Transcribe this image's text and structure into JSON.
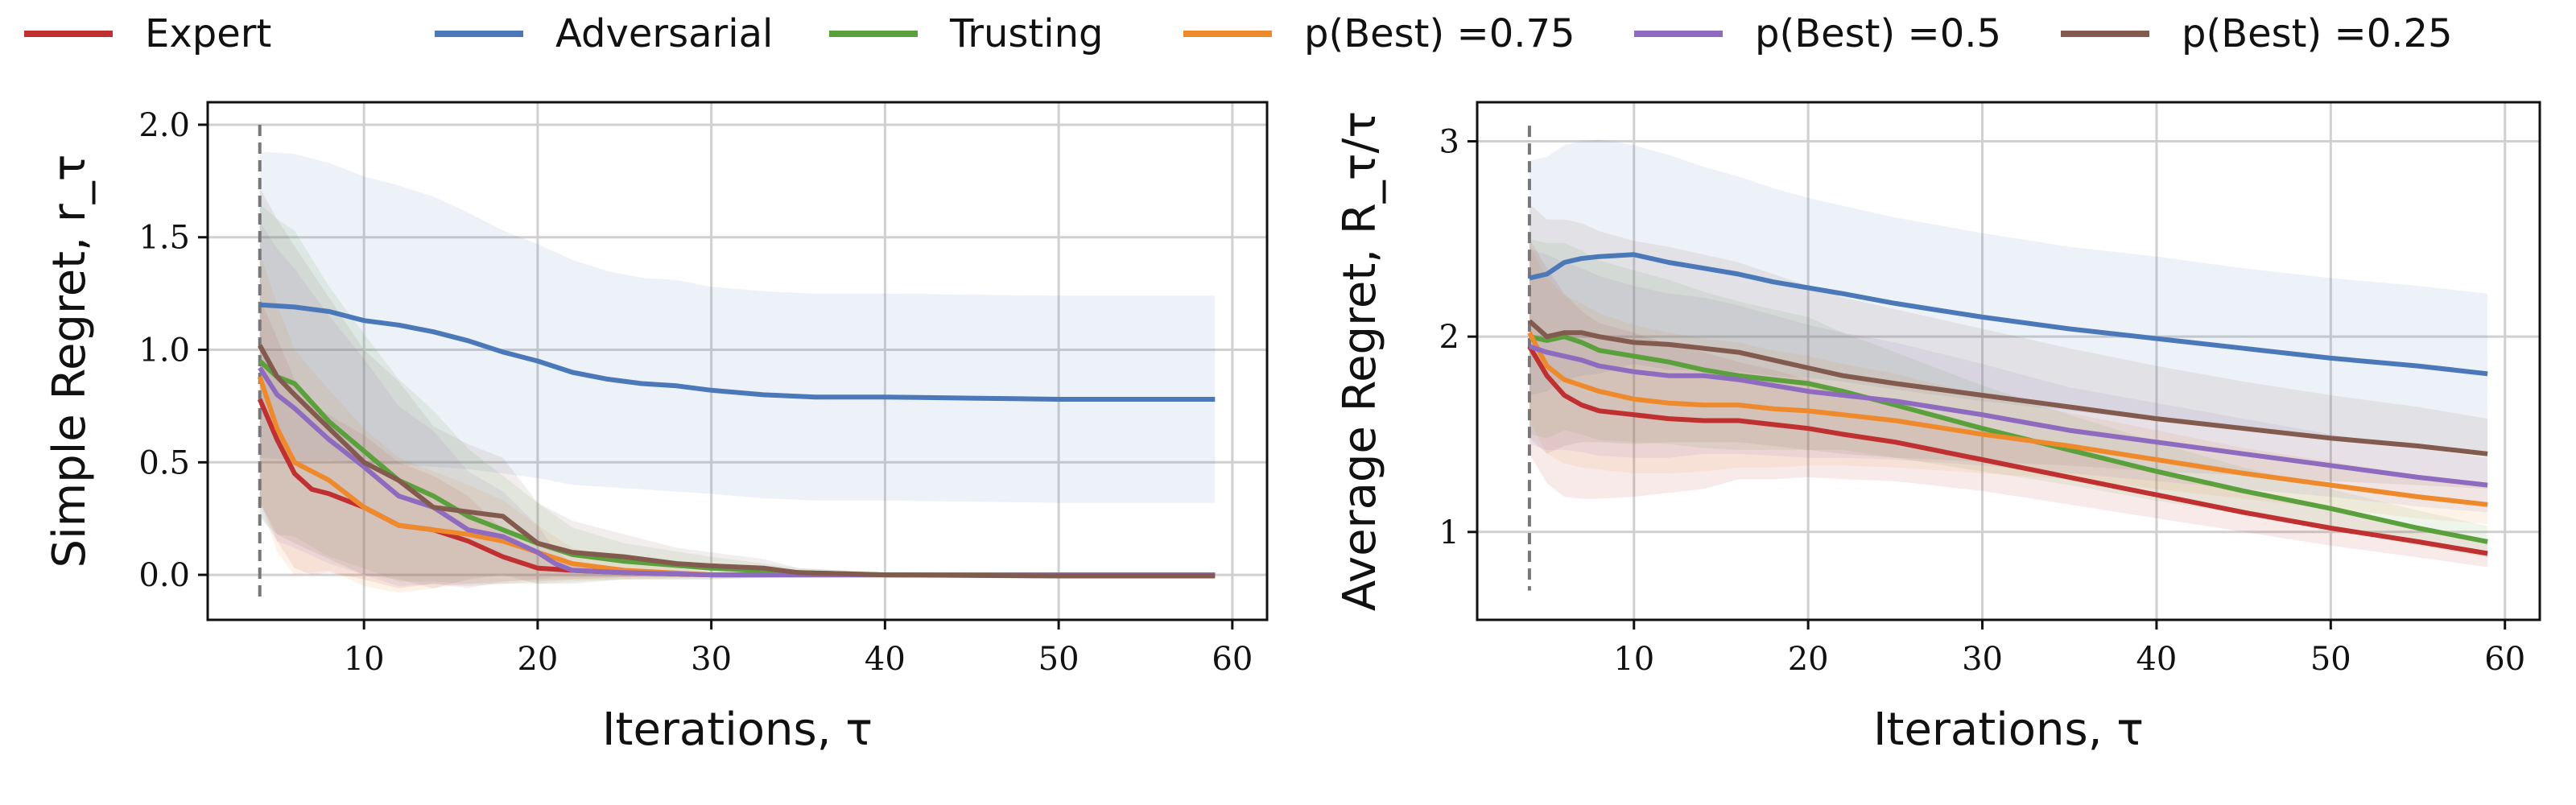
{
  "legend": [
    {
      "label": "Expert",
      "color": "#c03030"
    },
    {
      "label": "Adversarial",
      "color": "#4a78b8"
    },
    {
      "label": "Trusting",
      "color": "#5aa03c"
    },
    {
      "label": "p(Best) =0.75",
      "color": "#ef8a2c"
    },
    {
      "label": "p(Best) =0.5",
      "color": "#8e6bbf"
    },
    {
      "label": "p(Best) =0.25",
      "color": "#835a4e"
    }
  ],
  "chart_data": [
    {
      "type": "line",
      "ylabel": "Simple Regret, r_τ",
      "xlabel": "Iterations, τ",
      "xlim": [
        1,
        62
      ],
      "ylim": [
        -0.2,
        2.1
      ],
      "xticks": [
        10,
        20,
        30,
        40,
        50,
        60
      ],
      "yticks": [
        0.0,
        0.5,
        1.0,
        1.5,
        2.0
      ],
      "ytick_labels": [
        "0.0",
        "0.5",
        "1.0",
        "1.5",
        "2.0"
      ],
      "grid": true,
      "vline_x": 4,
      "series": [
        {
          "name": "Expert",
          "color": "#c03030",
          "x": [
            4,
            5,
            6,
            7,
            8,
            10,
            12,
            14,
            16,
            18,
            20,
            22,
            25,
            30,
            40,
            59
          ],
          "y": [
            0.78,
            0.6,
            0.45,
            0.38,
            0.36,
            0.3,
            0.22,
            0.2,
            0.15,
            0.08,
            0.03,
            0.02,
            0.01,
            0.0,
            0.0,
            0.0
          ],
          "band": [
            0.45,
            0.45,
            0.42,
            0.38,
            0.35,
            0.32,
            0.28,
            0.24,
            0.2,
            0.12,
            0.06,
            0.04,
            0.02,
            0.01,
            0.01,
            0.01
          ]
        },
        {
          "name": "Adversarial",
          "color": "#4a78b8",
          "x": [
            4,
            6,
            8,
            10,
            12,
            14,
            16,
            18,
            20,
            22,
            24,
            26,
            28,
            30,
            33,
            36,
            40,
            45,
            50,
            55,
            59
          ],
          "y": [
            1.2,
            1.19,
            1.17,
            1.13,
            1.11,
            1.08,
            1.04,
            0.99,
            0.95,
            0.9,
            0.87,
            0.85,
            0.84,
            0.82,
            0.8,
            0.79,
            0.79,
            0.785,
            0.78,
            0.78,
            0.78
          ],
          "band": [
            0.68,
            0.68,
            0.66,
            0.64,
            0.62,
            0.6,
            0.57,
            0.54,
            0.52,
            0.5,
            0.48,
            0.47,
            0.47,
            0.46,
            0.46,
            0.46,
            0.46,
            0.46,
            0.46,
            0.46,
            0.46
          ]
        },
        {
          "name": "Trusting",
          "color": "#5aa03c",
          "x": [
            4,
            5,
            6,
            8,
            10,
            12,
            14,
            16,
            18,
            20,
            22,
            25,
            30,
            35,
            40,
            59
          ],
          "y": [
            0.95,
            0.88,
            0.85,
            0.68,
            0.55,
            0.42,
            0.35,
            0.26,
            0.2,
            0.14,
            0.09,
            0.06,
            0.03,
            0.01,
            0.0,
            0.0
          ],
          "band": [
            0.7,
            0.7,
            0.68,
            0.6,
            0.52,
            0.45,
            0.38,
            0.3,
            0.24,
            0.18,
            0.12,
            0.08,
            0.05,
            0.02,
            0.01,
            0.01
          ]
        },
        {
          "name": "p(Best) =0.75",
          "color": "#ef8a2c",
          "x": [
            4,
            5,
            6,
            7,
            8,
            10,
            12,
            14,
            16,
            18,
            20,
            22,
            25,
            30,
            40,
            59
          ],
          "y": [
            0.88,
            0.65,
            0.5,
            0.46,
            0.42,
            0.3,
            0.22,
            0.2,
            0.18,
            0.15,
            0.1,
            0.05,
            0.02,
            0.0,
            0.0,
            0.0
          ],
          "band": [
            0.55,
            0.55,
            0.5,
            0.45,
            0.4,
            0.35,
            0.3,
            0.26,
            0.22,
            0.18,
            0.12,
            0.07,
            0.04,
            0.01,
            0.01,
            0.01
          ]
        },
        {
          "name": "p(Best) =0.5",
          "color": "#8e6bbf",
          "x": [
            4,
            5,
            6,
            8,
            10,
            12,
            14,
            16,
            18,
            20,
            21,
            22,
            25,
            30,
            40,
            59
          ],
          "y": [
            0.92,
            0.8,
            0.74,
            0.6,
            0.48,
            0.35,
            0.3,
            0.2,
            0.17,
            0.1,
            0.05,
            0.02,
            0.01,
            0.0,
            0.0,
            0.0
          ],
          "band": [
            0.65,
            0.65,
            0.62,
            0.55,
            0.48,
            0.4,
            0.34,
            0.26,
            0.2,
            0.12,
            0.06,
            0.03,
            0.02,
            0.01,
            0.01,
            0.01
          ]
        },
        {
          "name": "p(Best) =0.25",
          "color": "#835a4e",
          "x": [
            4,
            5,
            6,
            8,
            10,
            12,
            14,
            16,
            18,
            20,
            22,
            25,
            28,
            30,
            33,
            35,
            40,
            50,
            59
          ],
          "y": [
            1.02,
            0.88,
            0.8,
            0.65,
            0.5,
            0.42,
            0.3,
            0.28,
            0.26,
            0.14,
            0.1,
            0.08,
            0.05,
            0.04,
            0.03,
            0.01,
            0.0,
            -0.005,
            -0.005
          ],
          "band": [
            0.7,
            0.7,
            0.66,
            0.58,
            0.5,
            0.44,
            0.36,
            0.3,
            0.26,
            0.18,
            0.14,
            0.1,
            0.07,
            0.06,
            0.04,
            0.02,
            0.01,
            0.01,
            0.01
          ]
        }
      ]
    },
    {
      "type": "line",
      "ylabel": "Average Regret, R_τ/τ",
      "xlabel": "Iterations, τ",
      "xlim": [
        1,
        62
      ],
      "ylim": [
        0.55,
        3.2
      ],
      "xticks": [
        10,
        20,
        30,
        40,
        50,
        60
      ],
      "yticks": [
        1,
        2,
        3
      ],
      "ytick_labels": [
        "1",
        "2",
        "3"
      ],
      "grid": true,
      "vline_x": 4,
      "series": [
        {
          "name": "Expert",
          "color": "#c03030",
          "x": [
            4,
            5,
            6,
            7,
            8,
            10,
            12,
            14,
            16,
            18,
            20,
            22,
            25,
            30,
            35,
            40,
            45,
            50,
            55,
            59
          ],
          "y": [
            1.95,
            1.8,
            1.7,
            1.65,
            1.62,
            1.6,
            1.58,
            1.57,
            1.57,
            1.55,
            1.53,
            1.5,
            1.46,
            1.37,
            1.28,
            1.19,
            1.1,
            1.02,
            0.95,
            0.89
          ],
          "band": [
            0.55,
            0.55,
            0.52,
            0.48,
            0.45,
            0.42,
            0.38,
            0.35,
            0.3,
            0.28,
            0.25,
            0.23,
            0.2,
            0.16,
            0.14,
            0.12,
            0.1,
            0.09,
            0.08,
            0.07
          ]
        },
        {
          "name": "Adversarial",
          "color": "#4a78b8",
          "x": [
            4,
            5,
            6,
            7,
            8,
            10,
            12,
            14,
            16,
            18,
            20,
            22,
            25,
            30,
            35,
            40,
            45,
            50,
            55,
            59
          ],
          "y": [
            2.3,
            2.32,
            2.38,
            2.4,
            2.41,
            2.42,
            2.38,
            2.35,
            2.32,
            2.28,
            2.25,
            2.22,
            2.17,
            2.1,
            2.04,
            1.99,
            1.94,
            1.89,
            1.85,
            1.81
          ],
          "band": [
            0.6,
            0.6,
            0.6,
            0.6,
            0.6,
            0.56,
            0.55,
            0.52,
            0.5,
            0.48,
            0.46,
            0.45,
            0.44,
            0.43,
            0.42,
            0.42,
            0.41,
            0.41,
            0.41,
            0.41
          ]
        },
        {
          "name": "Trusting",
          "color": "#5aa03c",
          "x": [
            4,
            5,
            6,
            7,
            8,
            10,
            12,
            14,
            16,
            18,
            20,
            22,
            25,
            30,
            35,
            40,
            45,
            50,
            55,
            59
          ],
          "y": [
            2.0,
            1.98,
            2.0,
            1.97,
            1.93,
            1.9,
            1.87,
            1.83,
            1.8,
            1.78,
            1.76,
            1.72,
            1.65,
            1.53,
            1.42,
            1.31,
            1.21,
            1.12,
            1.02,
            0.95
          ],
          "band": [
            0.5,
            0.5,
            0.48,
            0.47,
            0.46,
            0.44,
            0.42,
            0.4,
            0.38,
            0.36,
            0.34,
            0.3,
            0.27,
            0.22,
            0.18,
            0.15,
            0.12,
            0.1,
            0.09,
            0.08
          ]
        },
        {
          "name": "p(Best) =0.75",
          "color": "#ef8a2c",
          "x": [
            4,
            5,
            6,
            7,
            8,
            10,
            12,
            14,
            16,
            18,
            20,
            22,
            25,
            30,
            35,
            40,
            45,
            50,
            55,
            59
          ],
          "y": [
            2.02,
            1.85,
            1.78,
            1.75,
            1.72,
            1.68,
            1.66,
            1.65,
            1.65,
            1.63,
            1.62,
            1.6,
            1.57,
            1.5,
            1.44,
            1.37,
            1.3,
            1.24,
            1.18,
            1.14
          ],
          "band": [
            0.45,
            0.45,
            0.43,
            0.42,
            0.4,
            0.38,
            0.36,
            0.34,
            0.32,
            0.3,
            0.28,
            0.26,
            0.24,
            0.2,
            0.17,
            0.15,
            0.13,
            0.12,
            0.11,
            0.1
          ]
        },
        {
          "name": "p(Best) =0.5",
          "color": "#8e6bbf",
          "x": [
            4,
            5,
            6,
            7,
            8,
            10,
            12,
            14,
            16,
            18,
            20,
            22,
            25,
            30,
            35,
            40,
            45,
            50,
            55,
            59
          ],
          "y": [
            1.95,
            1.92,
            1.9,
            1.88,
            1.85,
            1.82,
            1.8,
            1.8,
            1.78,
            1.75,
            1.72,
            1.7,
            1.67,
            1.6,
            1.52,
            1.46,
            1.4,
            1.34,
            1.28,
            1.24
          ],
          "band": [
            0.5,
            0.5,
            0.48,
            0.47,
            0.46,
            0.44,
            0.42,
            0.4,
            0.38,
            0.36,
            0.34,
            0.32,
            0.3,
            0.26,
            0.22,
            0.2,
            0.18,
            0.16,
            0.15,
            0.14
          ]
        },
        {
          "name": "p(Best) =0.25",
          "color": "#835a4e",
          "x": [
            4,
            5,
            6,
            7,
            8,
            10,
            12,
            14,
            16,
            18,
            20,
            22,
            25,
            30,
            35,
            40,
            45,
            50,
            55,
            59
          ],
          "y": [
            2.08,
            2.0,
            2.02,
            2.02,
            2.0,
            1.97,
            1.96,
            1.94,
            1.92,
            1.88,
            1.84,
            1.8,
            1.76,
            1.7,
            1.64,
            1.58,
            1.53,
            1.48,
            1.44,
            1.4
          ],
          "band": [
            0.6,
            0.6,
            0.58,
            0.56,
            0.54,
            0.52,
            0.5,
            0.48,
            0.46,
            0.44,
            0.42,
            0.4,
            0.38,
            0.34,
            0.3,
            0.27,
            0.24,
            0.22,
            0.2,
            0.18
          ]
        }
      ]
    }
  ]
}
